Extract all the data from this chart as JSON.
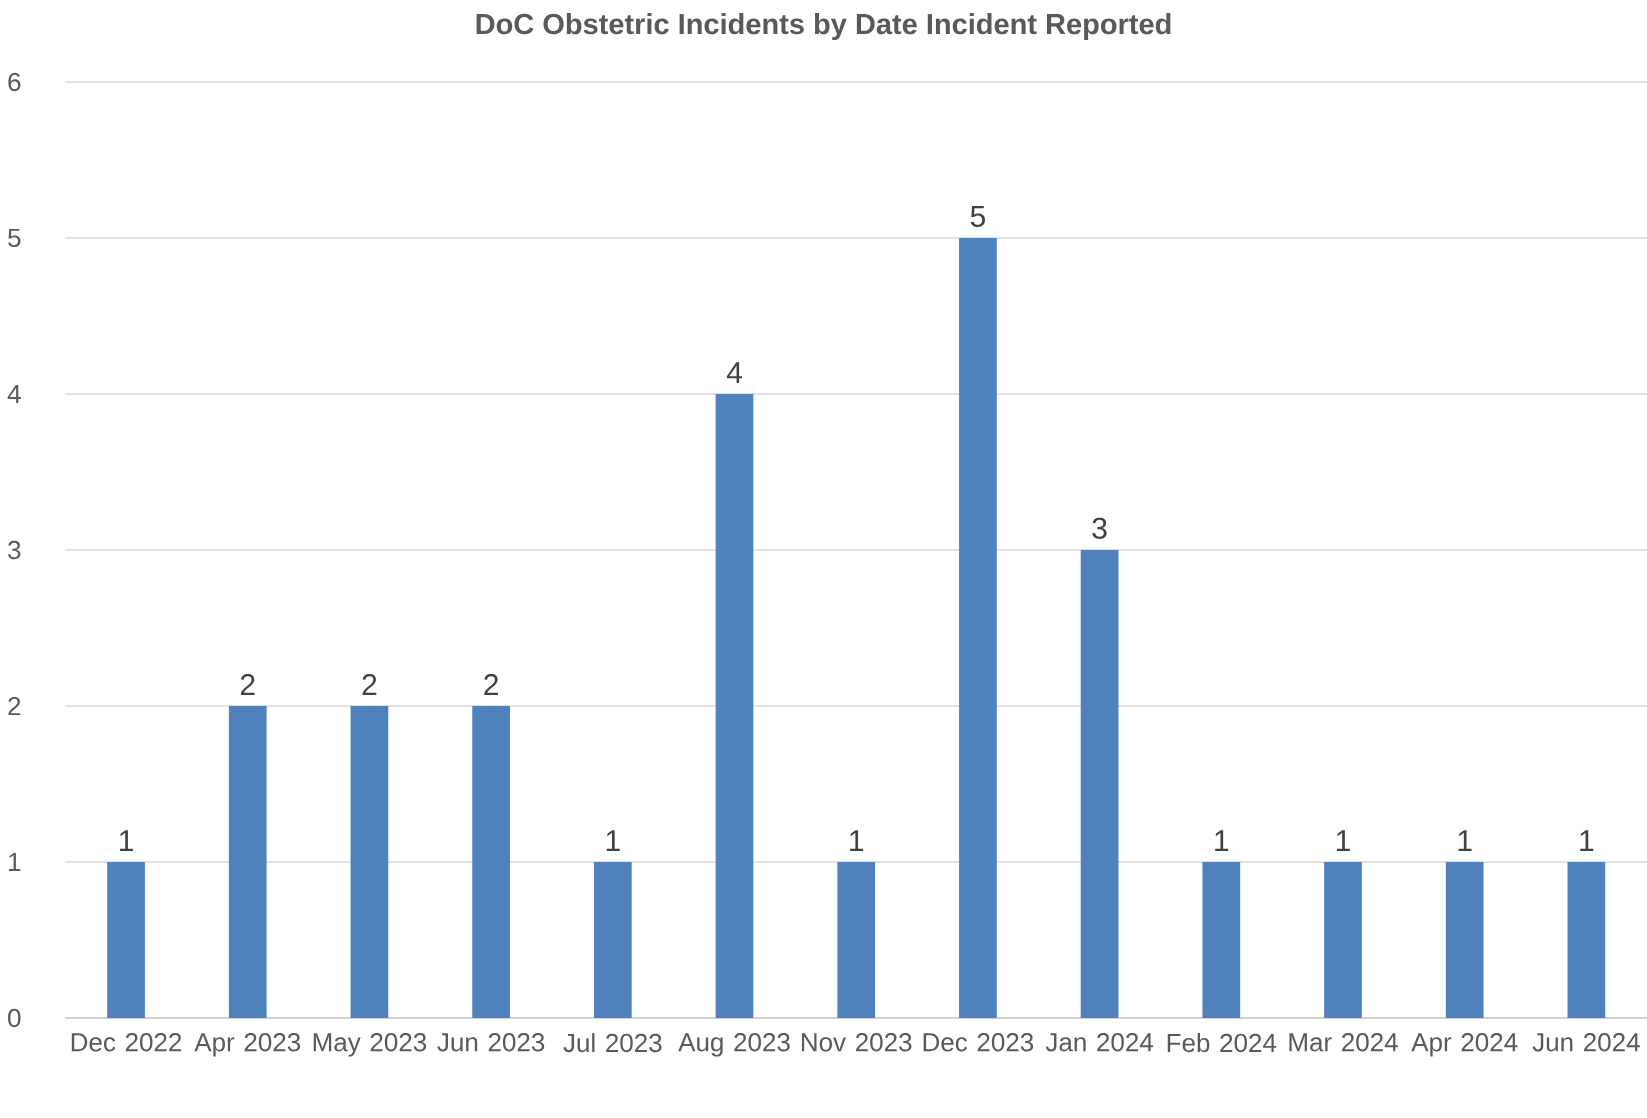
{
  "chart_data": {
    "type": "bar",
    "title": "DoC Obstetric Incidents by Date Incident Reported",
    "categories": [
      "Dec 2022",
      "Apr 2023",
      "May 2023",
      "Jun 2023",
      "Jul 2023",
      "Aug 2023",
      "Nov 2023",
      "Dec 2023",
      "Jan 2024",
      "Feb 2024",
      "Mar 2024",
      "Apr 2024",
      "Jun 2024"
    ],
    "values": [
      1,
      2,
      2,
      2,
      1,
      4,
      1,
      5,
      3,
      1,
      1,
      1,
      1
    ],
    "color": "#4f81bd",
    "ylim": [
      0,
      6
    ],
    "yticks": [
      0,
      1,
      2,
      3,
      4,
      5,
      6
    ],
    "grid": "y",
    "data_labels": true
  }
}
